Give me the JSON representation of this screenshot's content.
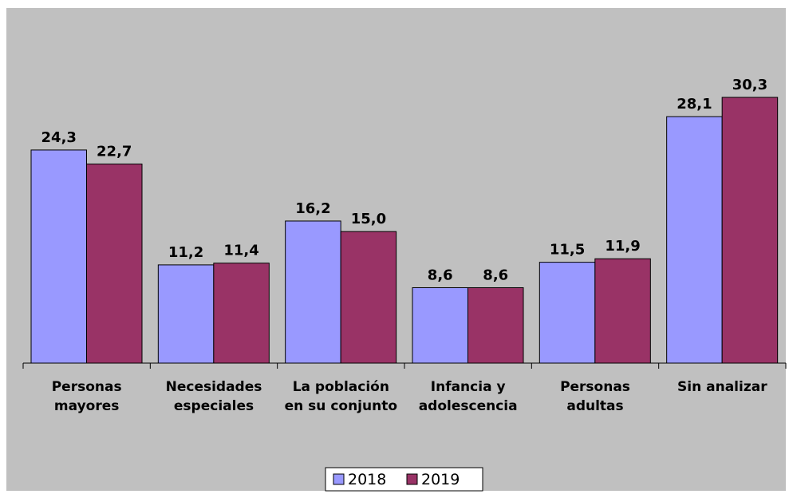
{
  "chart_data": {
    "type": "bar",
    "categories": [
      "Personas mayores",
      "Necesidades especiales",
      "La población en su conjunto",
      "Infancia y adolescencia",
      "Personas adultas",
      "Sin analizar"
    ],
    "series": [
      {
        "name": "2018",
        "color": "#9999ff",
        "values": [
          24.3,
          11.2,
          16.2,
          8.6,
          11.5,
          28.1
        ],
        "value_labels": [
          "24,3",
          "11,2",
          "16,2",
          "8,6",
          "11,5",
          "28,1"
        ]
      },
      {
        "name": "2019",
        "color": "#993366",
        "values": [
          22.7,
          11.4,
          15.0,
          8.6,
          11.9,
          30.3
        ],
        "value_labels": [
          "22,7",
          "11,4",
          "15,0",
          "8,6",
          "11,9",
          "30,3"
        ]
      }
    ],
    "legend": "bottom"
  }
}
